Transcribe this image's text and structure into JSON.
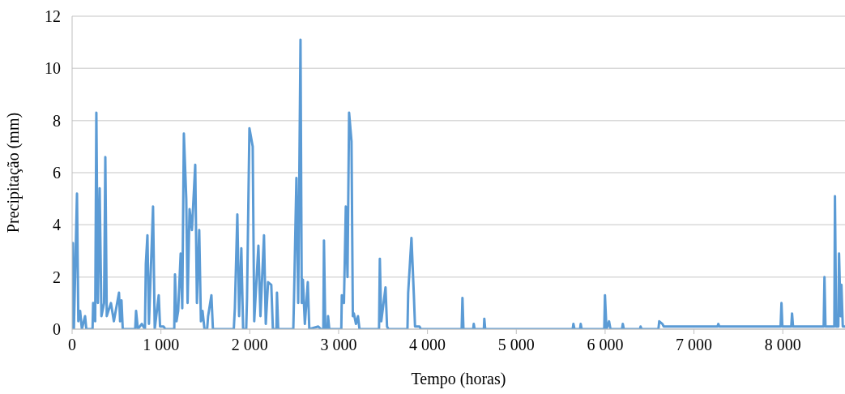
{
  "chart_data": {
    "type": "line",
    "xlabel": "Tempo (horas)",
    "ylabel": "Precipitação (mm)",
    "grid": "y",
    "xlim": [
      0,
      8700
    ],
    "xticks": [
      0,
      {
        "value": 1000,
        "label": "1 000"
      },
      {
        "value": 2000,
        "label": "2 000"
      },
      {
        "value": 3000,
        "label": "3 000"
      },
      {
        "value": 4000,
        "label": "4 000"
      },
      {
        "value": 5000,
        "label": "5 000"
      },
      {
        "value": 6000,
        "label": "6 000"
      },
      {
        "value": 7000,
        "label": "7 000"
      },
      {
        "value": 8000,
        "label": "8 000"
      }
    ],
    "ylim": [
      0,
      12
    ],
    "yticks": [
      0,
      2,
      4,
      6,
      8,
      10,
      12
    ],
    "x": [
      0,
      9,
      20,
      55,
      70,
      90,
      110,
      146,
      160,
      230,
      237,
      260,
      273,
      290,
      310,
      330,
      360,
      374,
      390,
      437,
      470,
      528,
      540,
      556,
      570,
      710,
      720,
      740,
      784,
      820,
      830,
      848,
      865,
      911,
      930,
      975,
      990,
      1030,
      1050,
      1150,
      1158,
      1175,
      1194,
      1222,
      1240,
      1258,
      1285,
      1300,
      1322,
      1349,
      1386,
      1405,
      1431,
      1450,
      1468,
      1490,
      1520,
      1531,
      1568,
      1585,
      1820,
      1832,
      1860,
      1880,
      1905,
      1925,
      1960,
      1969,
      1996,
      2033,
      2050,
      2097,
      2120,
      2160,
      2180,
      2206,
      2242,
      2260,
      2300,
      2306,
      2320,
      2490,
      2498,
      2525,
      2545,
      2571,
      2585,
      2598,
      2620,
      2653,
      2670,
      2771,
      2800,
      2828,
      2835,
      2850,
      2875,
      2881,
      2895,
      3030,
      3036,
      3060,
      3081,
      3100,
      3118,
      3145,
      3160,
      3172,
      3195,
      3218,
      3235,
      3455,
      3464,
      3480,
      3528,
      3545,
      3560,
      3775,
      3783,
      3820,
      3847,
      3860,
      3910,
      3925,
      4385,
      4394,
      4405,
      4515,
      4521,
      4530,
      4635,
      4640,
      4650,
      5635,
      5643,
      5655,
      5718,
      5725,
      5735,
      5990,
      5998,
      6015,
      6044,
      6060,
      6190,
      6199,
      6210,
      6392,
      6399,
      6410,
      6600,
      6609,
      6645,
      6660,
      7265,
      7274,
      7285,
      7975,
      7985,
      7995,
      8095,
      8104,
      8115,
      8460,
      8469,
      8480,
      8580,
      8587,
      8600,
      8625,
      8633,
      8650,
      8660,
      8675,
      8700
    ],
    "series": [
      {
        "color": "#5b9bd5",
        "values": [
          0,
          3.3,
          0,
          5.2,
          0.3,
          0.7,
          0,
          0.5,
          0,
          0,
          1.0,
          0.3,
          8.3,
          1.0,
          5.4,
          0.5,
          1.0,
          6.6,
          0.5,
          1.0,
          0.3,
          1.4,
          0.3,
          1.1,
          0,
          0,
          0.7,
          0,
          0.2,
          0,
          2.5,
          3.6,
          0.2,
          4.7,
          0,
          1.3,
          0.1,
          0.1,
          0,
          0,
          2.1,
          0.3,
          0.7,
          2.9,
          0.8,
          7.5,
          5.0,
          1.0,
          4.6,
          3.8,
          6.3,
          1.0,
          3.8,
          0.3,
          0.7,
          0,
          0,
          0.5,
          1.3,
          0,
          0,
          0.8,
          4.4,
          0.5,
          3.1,
          0,
          0,
          1.2,
          7.7,
          7.0,
          0.3,
          3.2,
          0.5,
          3.6,
          0.2,
          1.8,
          1.7,
          0,
          0,
          1.4,
          0,
          0,
          1.2,
          5.8,
          1.0,
          11.1,
          1.0,
          1.9,
          0.2,
          1.8,
          0,
          0.1,
          0,
          0,
          3.4,
          0,
          0,
          0.5,
          0,
          0,
          1.3,
          1.0,
          4.7,
          2.0,
          8.3,
          7.2,
          0.5,
          0.6,
          0.2,
          0.5,
          0,
          0,
          2.7,
          0.3,
          1.6,
          0.1,
          0,
          0,
          1.4,
          3.5,
          1.3,
          0.1,
          0.1,
          0,
          0,
          1.2,
          0,
          0,
          0.2,
          0,
          0,
          0.4,
          0,
          0,
          0.2,
          0,
          0,
          0.2,
          0,
          0,
          1.3,
          0,
          0.3,
          0,
          0,
          0.2,
          0,
          0,
          0.1,
          0,
          0,
          0.3,
          0.2,
          0.1,
          0.1,
          0.2,
          0.1,
          0.1,
          1.0,
          0.1,
          0.1,
          0.6,
          0.1,
          0.1,
          2.0,
          0.1,
          0.1,
          5.1,
          0.1,
          0.1,
          2.9,
          0.5,
          1.7,
          0.1,
          0.1
        ]
      }
    ]
  }
}
